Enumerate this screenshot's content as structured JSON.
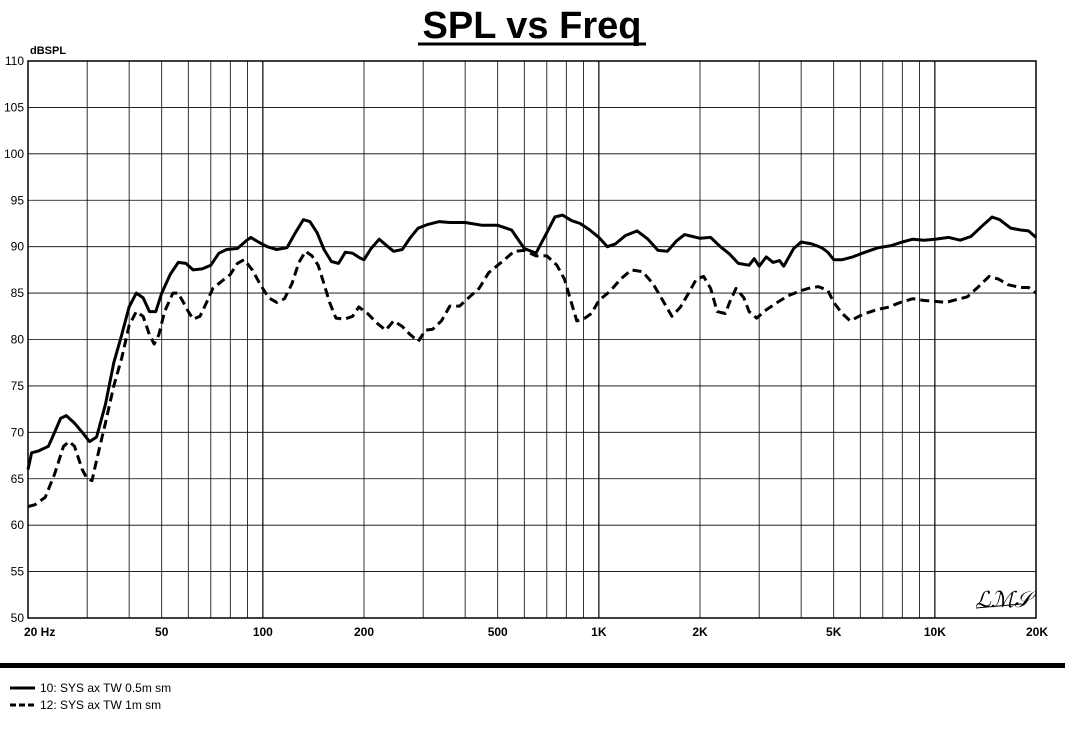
{
  "chart_data": {
    "type": "line",
    "title": "SPL vs Freq",
    "ylabel": "dBSPL",
    "xlabel": "",
    "x_scale": "log",
    "xlim": [
      20,
      20000
    ],
    "ylim": [
      50,
      110
    ],
    "grid": true,
    "y_ticks": [
      "110",
      "105",
      "100",
      "95",
      "90",
      "85",
      "80",
      "75",
      "70",
      "65",
      "60",
      "55",
      "50"
    ],
    "x_ticks": [
      {
        "label": "20  Hz",
        "value": 20
      },
      {
        "label": "50",
        "value": 50
      },
      {
        "label": "100",
        "value": 100
      },
      {
        "label": "200",
        "value": 200
      },
      {
        "label": "500",
        "value": 500
      },
      {
        "label": "1K",
        "value": 1000
      },
      {
        "label": "2K",
        "value": 2000
      },
      {
        "label": "5K",
        "value": 5000
      },
      {
        "label": "10K",
        "value": 10000
      },
      {
        "label": "20K",
        "value": 20000
      }
    ],
    "series": [
      {
        "name": "10: SYS ax TW 0.5m sm",
        "style": "solid",
        "points": [
          [
            20,
            66
          ],
          [
            20.5,
            67.8
          ],
          [
            21.5,
            68
          ],
          [
            23,
            68.5
          ],
          [
            24,
            70
          ],
          [
            25,
            71.5
          ],
          [
            26,
            71.8
          ],
          [
            27.5,
            71
          ],
          [
            29,
            70
          ],
          [
            30.5,
            69
          ],
          [
            32,
            69.5
          ],
          [
            34,
            73
          ],
          [
            36,
            77.5
          ],
          [
            38,
            80.5
          ],
          [
            40,
            83.5
          ],
          [
            42,
            85
          ],
          [
            44,
            84.5
          ],
          [
            46,
            83
          ],
          [
            48,
            83
          ],
          [
            50,
            85
          ],
          [
            53,
            87
          ],
          [
            56,
            88.3
          ],
          [
            59,
            88.2
          ],
          [
            62,
            87.5
          ],
          [
            66,
            87.6
          ],
          [
            70,
            88
          ],
          [
            74,
            89.3
          ],
          [
            78,
            89.7
          ],
          [
            84,
            89.8
          ],
          [
            89,
            90.6
          ],
          [
            92,
            91
          ],
          [
            97,
            90.5
          ],
          [
            103,
            90
          ],
          [
            110,
            89.7
          ],
          [
            118,
            89.9
          ],
          [
            125,
            91.5
          ],
          [
            132,
            92.9
          ],
          [
            138,
            92.7
          ],
          [
            145,
            91.5
          ],
          [
            152,
            89.7
          ],
          [
            160,
            88.4
          ],
          [
            168,
            88.2
          ],
          [
            176,
            89.4
          ],
          [
            185,
            89.3
          ],
          [
            194,
            88.8
          ],
          [
            200,
            88.6
          ],
          [
            210,
            89.8
          ],
          [
            222,
            90.8
          ],
          [
            232,
            90.2
          ],
          [
            245,
            89.5
          ],
          [
            260,
            89.7
          ],
          [
            275,
            91
          ],
          [
            290,
            92
          ],
          [
            310,
            92.4
          ],
          [
            335,
            92.7
          ],
          [
            360,
            92.6
          ],
          [
            400,
            92.6
          ],
          [
            450,
            92.3
          ],
          [
            500,
            92.3
          ],
          [
            550,
            91.8
          ],
          [
            600,
            89.8
          ],
          [
            650,
            89.3
          ],
          [
            700,
            91.5
          ],
          [
            740,
            93.2
          ],
          [
            780,
            93.4
          ],
          [
            830,
            92.8
          ],
          [
            880,
            92.5
          ],
          [
            940,
            91.8
          ],
          [
            1000,
            91
          ],
          [
            1060,
            90
          ],
          [
            1120,
            90.3
          ],
          [
            1200,
            91.2
          ],
          [
            1300,
            91.7
          ],
          [
            1400,
            90.8
          ],
          [
            1500,
            89.6
          ],
          [
            1600,
            89.5
          ],
          [
            1700,
            90.6
          ],
          [
            1800,
            91.3
          ],
          [
            1900,
            91.1
          ],
          [
            2000,
            90.9
          ],
          [
            2150,
            91
          ],
          [
            2300,
            90
          ],
          [
            2450,
            89.2
          ],
          [
            2600,
            88.2
          ],
          [
            2800,
            88
          ],
          [
            2900,
            88.7
          ],
          [
            3000,
            87.9
          ],
          [
            3150,
            88.9
          ],
          [
            3300,
            88.3
          ],
          [
            3450,
            88.5
          ],
          [
            3550,
            87.9
          ],
          [
            3800,
            89.8
          ],
          [
            4000,
            90.5
          ],
          [
            4300,
            90.3
          ],
          [
            4600,
            89.9
          ],
          [
            4800,
            89.4
          ],
          [
            5000,
            88.6
          ],
          [
            5300,
            88.6
          ],
          [
            5700,
            88.9
          ],
          [
            6200,
            89.4
          ],
          [
            6800,
            89.9
          ],
          [
            7400,
            90.1
          ],
          [
            8000,
            90.5
          ],
          [
            8600,
            90.8
          ],
          [
            9300,
            90.7
          ],
          [
            10000,
            90.8
          ],
          [
            11000,
            91
          ],
          [
            11900,
            90.7
          ],
          [
            12800,
            91.1
          ],
          [
            13800,
            92.2
          ],
          [
            14800,
            93.2
          ],
          [
            15600,
            92.9
          ],
          [
            16800,
            92
          ],
          [
            18000,
            91.8
          ],
          [
            19000,
            91.7
          ],
          [
            20000,
            91
          ]
        ]
      },
      {
        "name": "12: SYS ax TW 1m sm",
        "style": "dashed",
        "points": [
          [
            20,
            62
          ],
          [
            21,
            62.2
          ],
          [
            22.5,
            63
          ],
          [
            24,
            65.5
          ],
          [
            25.5,
            68.5
          ],
          [
            26.5,
            69
          ],
          [
            27.5,
            68.5
          ],
          [
            29,
            66
          ],
          [
            30,
            65
          ],
          [
            31,
            64.8
          ],
          [
            32,
            67
          ],
          [
            34,
            71
          ],
          [
            36,
            75
          ],
          [
            38,
            78
          ],
          [
            40,
            81.5
          ],
          [
            42,
            83
          ],
          [
            44,
            82.5
          ],
          [
            46,
            80.5
          ],
          [
            47.5,
            79.5
          ],
          [
            49,
            80.5
          ],
          [
            51,
            83
          ],
          [
            54,
            85
          ],
          [
            56,
            85
          ],
          [
            58,
            84
          ],
          [
            60,
            83
          ],
          [
            62,
            82.2
          ],
          [
            65,
            82.5
          ],
          [
            68,
            84
          ],
          [
            71,
            85.5
          ],
          [
            75,
            86.2
          ],
          [
            80,
            87
          ],
          [
            84,
            88.2
          ],
          [
            88,
            88.6
          ],
          [
            93,
            87.5
          ],
          [
            98,
            86
          ],
          [
            104,
            84.5
          ],
          [
            110,
            84
          ],
          [
            116,
            84.4
          ],
          [
            122,
            86
          ],
          [
            128,
            88.3
          ],
          [
            134,
            89.5
          ],
          [
            140,
            89
          ],
          [
            146,
            88
          ],
          [
            152,
            86
          ],
          [
            158,
            84
          ],
          [
            165,
            82.3
          ],
          [
            175,
            82.2
          ],
          [
            185,
            82.5
          ],
          [
            193,
            83.5
          ],
          [
            205,
            82.8
          ],
          [
            218,
            81.8
          ],
          [
            232,
            81
          ],
          [
            245,
            82
          ],
          [
            260,
            81.4
          ],
          [
            275,
            80.5
          ],
          [
            290,
            79.8
          ],
          [
            305,
            81
          ],
          [
            320,
            81.1
          ],
          [
            340,
            82
          ],
          [
            360,
            83.6
          ],
          [
            385,
            83.6
          ],
          [
            410,
            84.5
          ],
          [
            440,
            85.5
          ],
          [
            470,
            87.2
          ],
          [
            520,
            88.5
          ],
          [
            560,
            89.5
          ],
          [
            600,
            89.6
          ],
          [
            650,
            89
          ],
          [
            700,
            89
          ],
          [
            750,
            88
          ],
          [
            790,
            86.5
          ],
          [
            820,
            84.5
          ],
          [
            860,
            82
          ],
          [
            900,
            82.2
          ],
          [
            950,
            82.8
          ],
          [
            1000,
            84.2
          ],
          [
            1080,
            85.2
          ],
          [
            1160,
            86.5
          ],
          [
            1250,
            87.5
          ],
          [
            1350,
            87.3
          ],
          [
            1450,
            86
          ],
          [
            1550,
            84.2
          ],
          [
            1650,
            82.5
          ],
          [
            1750,
            83.5
          ],
          [
            1850,
            85
          ],
          [
            1950,
            86.5
          ],
          [
            2050,
            86.8
          ],
          [
            2150,
            85.5
          ],
          [
            2250,
            83
          ],
          [
            2380,
            82.8
          ],
          [
            2450,
            84
          ],
          [
            2560,
            85.5
          ],
          [
            2700,
            84.5
          ],
          [
            2800,
            83
          ],
          [
            2950,
            82.3
          ],
          [
            3150,
            83.2
          ],
          [
            3400,
            84
          ],
          [
            3650,
            84.7
          ],
          [
            3950,
            85.2
          ],
          [
            4200,
            85.5
          ],
          [
            4500,
            85.7
          ],
          [
            4800,
            85.3
          ],
          [
            5000,
            84
          ],
          [
            5300,
            82.8
          ],
          [
            5600,
            82
          ],
          [
            6100,
            82.7
          ],
          [
            6700,
            83.2
          ],
          [
            7300,
            83.5
          ],
          [
            7900,
            84
          ],
          [
            8600,
            84.4
          ],
          [
            9300,
            84.2
          ],
          [
            10000,
            84.1
          ],
          [
            10800,
            84
          ],
          [
            11600,
            84.3
          ],
          [
            12500,
            84.6
          ],
          [
            13500,
            85.7
          ],
          [
            14500,
            86.8
          ],
          [
            15500,
            86.5
          ],
          [
            16500,
            85.9
          ],
          [
            18000,
            85.6
          ],
          [
            19000,
            85.6
          ],
          [
            20000,
            85
          ]
        ]
      }
    ],
    "logo": "LMS"
  }
}
